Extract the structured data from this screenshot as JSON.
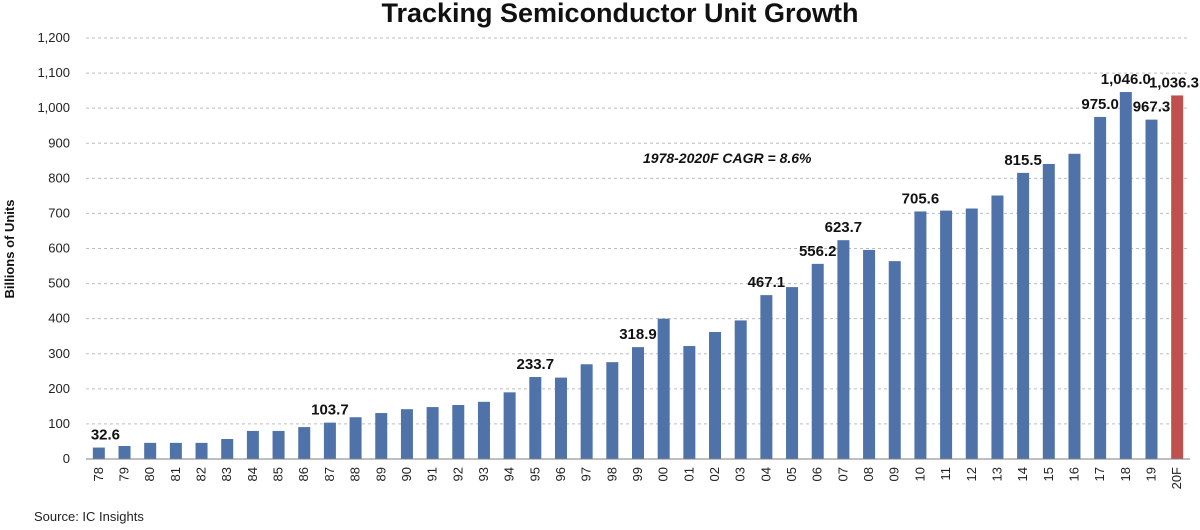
{
  "chart_data": {
    "type": "bar",
    "title": "Tracking Semiconductor Unit Growth",
    "ylabel": "Billions of Units",
    "xlabel": "",
    "ylim": [
      0,
      1200
    ],
    "yticks": [
      0,
      100,
      200,
      300,
      400,
      500,
      600,
      700,
      800,
      900,
      1000,
      1100,
      1200
    ],
    "ytick_labels": [
      "0",
      "100",
      "200",
      "300",
      "400",
      "500",
      "600",
      "700",
      "800",
      "900",
      "1,000",
      "1,100",
      "1,200"
    ],
    "grid": true,
    "categories": [
      "78",
      "79",
      "80",
      "81",
      "82",
      "83",
      "84",
      "85",
      "86",
      "87",
      "88",
      "89",
      "90",
      "91",
      "92",
      "93",
      "94",
      "95",
      "96",
      "97",
      "98",
      "99",
      "00",
      "01",
      "02",
      "03",
      "04",
      "05",
      "06",
      "07",
      "08",
      "09",
      "10",
      "11",
      "12",
      "13",
      "14",
      "15",
      "16",
      "17",
      "18",
      "19",
      "20F"
    ],
    "values": [
      32.6,
      37,
      46,
      46,
      46,
      57,
      80,
      80,
      91,
      103.7,
      119,
      131,
      142,
      148,
      154,
      163,
      190,
      233.7,
      232,
      270,
      276,
      318.9,
      400,
      322,
      362,
      395,
      467.1,
      490,
      556.2,
      623.7,
      596,
      564,
      705.6,
      708,
      714,
      751,
      815.5,
      841,
      870,
      975.0,
      1046.0,
      967.3,
      1036.3
    ],
    "data_labels": [
      {
        "category": "78",
        "text": "32.6"
      },
      {
        "category": "87",
        "text": "103.7"
      },
      {
        "category": "95",
        "text": "233.7"
      },
      {
        "category": "99",
        "text": "318.9"
      },
      {
        "category": "04",
        "text": "467.1"
      },
      {
        "category": "06",
        "text": "556.2"
      },
      {
        "category": "07",
        "text": "623.7"
      },
      {
        "category": "10",
        "text": "705.6"
      },
      {
        "category": "14",
        "text": "815.5"
      },
      {
        "category": "17",
        "text": "975.0"
      },
      {
        "category": "18",
        "text": "1,046.0"
      },
      {
        "category": "19",
        "text": "967.3"
      },
      {
        "category": "20F",
        "text": "1,036.3"
      }
    ],
    "annotation": "1978-2020F CAGR = 8.6%",
    "colors": {
      "actual": "#4F73A8",
      "forecast": "#C0504D"
    },
    "forecast_categories": [
      "20F"
    ]
  },
  "source": "Source:  IC Insights"
}
